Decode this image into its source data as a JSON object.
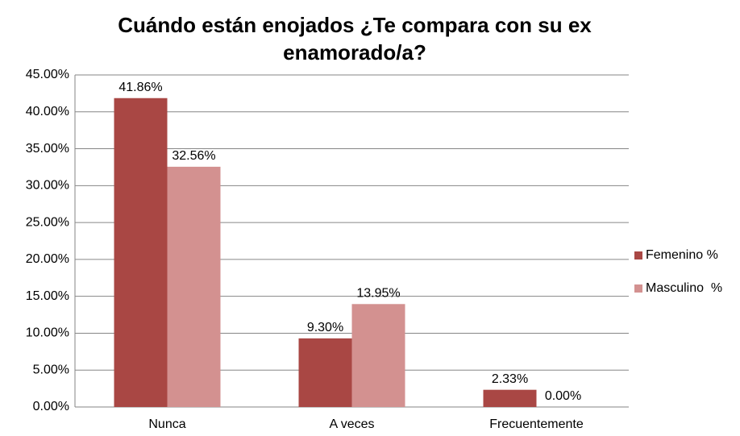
{
  "chart_data": {
    "type": "bar",
    "title": "Cuándo están enojados ¿Te compara con su ex enamorado/a?",
    "categories": [
      "Nunca",
      "A veces",
      "Frecuentemente"
    ],
    "series": [
      {
        "name": "Femenino %",
        "color": "#a94744",
        "values": [
          41.86,
          9.3,
          2.33
        ],
        "value_labels": [
          "41.86%",
          "9.30%",
          "2.33%"
        ]
      },
      {
        "name": "Masculino  %",
        "color": "#d39190",
        "values": [
          32.56,
          13.95,
          0.0
        ],
        "value_labels": [
          "32.56%",
          "13.95%",
          "0.00%"
        ]
      }
    ],
    "ylim": [
      0,
      45
    ],
    "yticks": [
      {
        "value": 0,
        "label": "0.00%"
      },
      {
        "value": 5,
        "label": "5.00%"
      },
      {
        "value": 10,
        "label": "10.00%"
      },
      {
        "value": 15,
        "label": "15.00%"
      },
      {
        "value": 20,
        "label": "20.00%"
      },
      {
        "value": 25,
        "label": "25.00%"
      },
      {
        "value": 30,
        "label": "30.00%"
      },
      {
        "value": 35,
        "label": "35.00%"
      },
      {
        "value": 40,
        "label": "40.00%"
      },
      {
        "value": 45,
        "label": "45.00%"
      }
    ],
    "grid": true,
    "legend": "right"
  }
}
